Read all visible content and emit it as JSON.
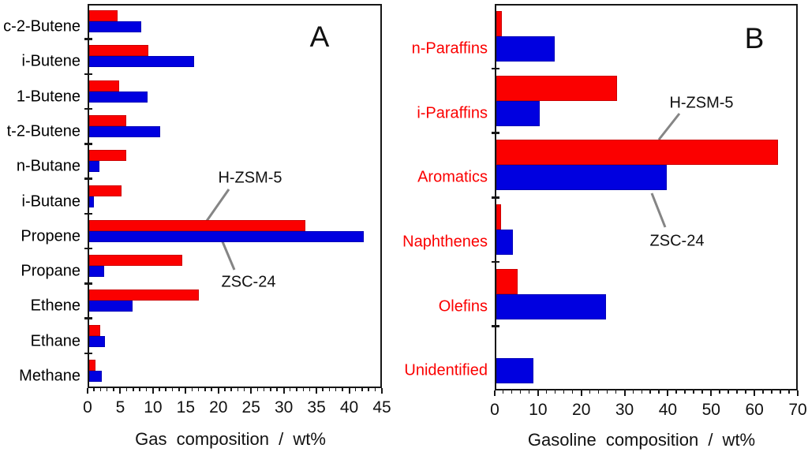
{
  "figure_title": "",
  "chart_data": [
    {
      "id": "A",
      "type": "bar",
      "orientation": "horizontal",
      "panel_label": "A",
      "title": "",
      "xlabel": "Gas composition / wt%",
      "ylabel": "",
      "xlim": [
        0,
        45
      ],
      "xticks": [
        0,
        5,
        10,
        15,
        20,
        25,
        30,
        35,
        40,
        45
      ],
      "minor_tick_step": 1,
      "grid": false,
      "legend_position": "inline-annotations",
      "category_label_color": "#000000",
      "categories": [
        "c-2-Butene",
        "i-Butene",
        "1-Butene",
        "t-2-Butene",
        "n-Butane",
        "i-Butane",
        "Propene",
        "Propane",
        "Ethene",
        "Ethane",
        "Methane"
      ],
      "series": [
        {
          "name": "H-ZSM-5",
          "color": "#fb0000",
          "values": [
            4.3,
            9.0,
            4.6,
            5.7,
            5.7,
            5.0,
            33.0,
            14.2,
            16.8,
            1.7,
            1.0
          ]
        },
        {
          "name": "ZSC-24",
          "color": "#0000e0",
          "values": [
            8.0,
            16.1,
            8.9,
            10.9,
            1.6,
            0.7,
            42.0,
            2.3,
            6.6,
            2.4,
            1.9
          ]
        }
      ],
      "annotations": [
        "H-ZSM-5",
        "ZSC-24"
      ]
    },
    {
      "id": "B",
      "type": "bar",
      "orientation": "horizontal",
      "panel_label": "B",
      "title": "",
      "xlabel": "Gasoline composition / wt%",
      "ylabel": "",
      "xlim": [
        0,
        70
      ],
      "xticks": [
        0,
        10,
        20,
        30,
        40,
        50,
        60,
        70
      ],
      "minor_tick_step": 2,
      "grid": false,
      "legend_position": "inline-annotations",
      "category_label_color": "#fb0000",
      "categories": [
        "n-Paraffins",
        "i-Paraffins",
        "Aromatics",
        "Naphthenes",
        "Olefins",
        "Unidentified"
      ],
      "series": [
        {
          "name": "H-ZSM-5",
          "color": "#fb0000",
          "values": [
            1.2,
            27.9,
            65.0,
            1.1,
            4.9,
            0
          ]
        },
        {
          "name": "ZSC-24",
          "color": "#0000e0",
          "values": [
            13.4,
            10.1,
            39.3,
            3.8,
            25.4,
            8.6
          ]
        }
      ],
      "annotations": [
        "H-ZSM-5",
        "ZSC-24"
      ]
    }
  ],
  "colors": {
    "hzsm5_red": "#fb0000",
    "zsc24_blue": "#0000e0",
    "axis_black": "#161616",
    "leader_gray": "#858585"
  }
}
